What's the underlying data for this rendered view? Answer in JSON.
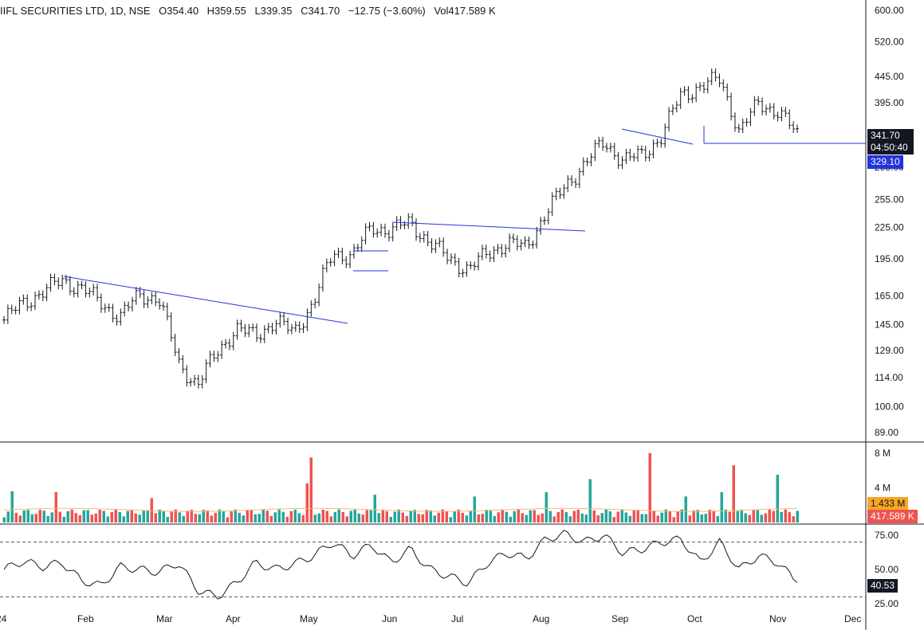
{
  "header": {
    "symbol": "IIFL SECURITIES LTD, 1D, NSE",
    "open": "O354.40",
    "high": "H359.55",
    "low": "L339.35",
    "close": "C341.70",
    "change": "−12.75 (−3.60%)",
    "volume": "Vol417.589 K"
  },
  "price_tags": {
    "last": "341.70",
    "countdown": "04:50:40",
    "line_level": "329.10",
    "vol_ma": "1.433 M",
    "vol_last": "417.589 K",
    "rsi_last": "40.53"
  },
  "colors": {
    "up": "#26a69a",
    "down": "#ef5350",
    "candle": "#131722",
    "trendline": "#2233dd",
    "vol_ma": "#f5b97a",
    "rsi": "#131722"
  },
  "chart_data": [
    {
      "type": "ohlc",
      "scale": "log",
      "x": [
        "Jan-31",
        "Feb-07",
        "Feb-14",
        "Feb-21",
        "Feb-28",
        "Mar-06",
        "Mar-13",
        "Mar-20",
        "Mar-27",
        "Apr-03",
        "Apr-10",
        "Apr-17",
        "Apr-24",
        "May-01",
        "May-08",
        "May-15",
        "May-22",
        "May-29",
        "Jun-05",
        "Jun-12",
        "Jun-19",
        "Jun-26",
        "Jul-03",
        "Jul-10",
        "Jul-17",
        "Jul-24",
        "Jul-31",
        "Aug-07",
        "Aug-14",
        "Aug-21",
        "Aug-28",
        "Sep-04",
        "Sep-11",
        "Sep-18",
        "Sep-25",
        "Oct-02",
        "Oct-09",
        "Oct-16",
        "Oct-23",
        "Oct-30",
        "Nov-06",
        "Nov-13"
      ],
      "close": [
        148,
        160,
        168,
        177,
        171,
        160,
        150,
        166,
        163,
        122,
        110,
        128,
        142,
        138,
        147,
        140,
        160,
        200,
        198,
        225,
        222,
        230,
        210,
        195,
        186,
        200,
        210,
        205,
        240,
        270,
        300,
        330,
        305,
        312,
        340,
        410,
        425,
        440,
        345,
        395,
        380,
        341.7
      ],
      "y_ticks": [
        "600.00",
        "520.00",
        "445.00",
        "395.00",
        "341.70",
        "295.00",
        "255.00",
        "225.00",
        "195.00",
        "165.00",
        "145.00",
        "129.00",
        "114.00",
        "100.00",
        "89.00"
      ],
      "horizontal_line": 329.1,
      "x_ticks": [
        "24",
        "Feb",
        "Mar",
        "Apr",
        "May",
        "Jun",
        "Jul",
        "Aug",
        "Sep",
        "Oct",
        "Nov",
        "Dec"
      ]
    },
    {
      "type": "bar",
      "name": "Volume",
      "y_ticks": [
        "8 M",
        "4 M"
      ],
      "ma_value": 1.433,
      "last_value": 0.417589
    },
    {
      "type": "line",
      "name": "RSI",
      "y_ticks": [
        "75.00",
        "50.00",
        "25.00"
      ],
      "bands": [
        70,
        30
      ],
      "values": [
        50,
        56,
        52,
        55,
        42,
        38,
        52,
        50,
        48,
        55,
        35,
        30,
        40,
        55,
        50,
        54,
        60,
        70,
        60,
        68,
        55,
        65,
        50,
        45,
        40,
        55,
        62,
        58,
        72,
        76,
        70,
        75,
        62,
        65,
        70,
        72,
        55,
        70,
        50,
        60,
        55,
        40.53
      ]
    }
  ]
}
